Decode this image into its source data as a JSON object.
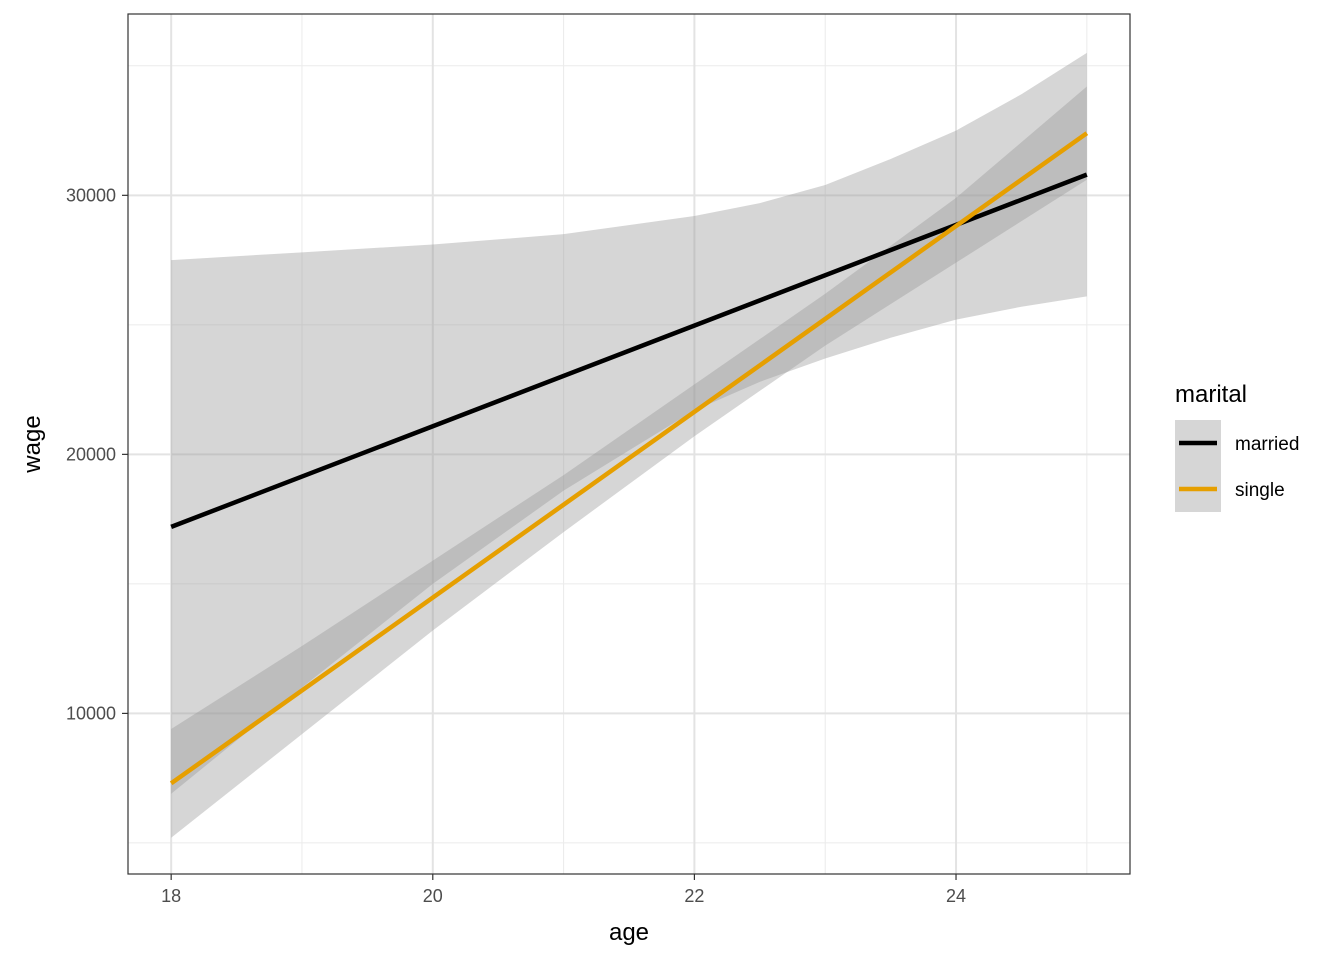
{
  "chart_data": {
    "type": "line",
    "xlabel": "age",
    "ylabel": "wage",
    "xlim": [
      17.67,
      25.33
    ],
    "ylim": [
      3800,
      37000
    ],
    "x_ticks": [
      18,
      20,
      22,
      24
    ],
    "x_tick_labels": [
      "18",
      "20",
      "22",
      "24"
    ],
    "x_minor": [
      19,
      21,
      23,
      25
    ],
    "y_ticks": [
      10000,
      20000,
      30000
    ],
    "y_tick_labels": [
      "10000",
      "20000",
      "30000"
    ],
    "y_minor": [
      5000,
      15000,
      25000,
      35000
    ],
    "grid": true,
    "legend": {
      "title": "marital",
      "position": "right",
      "entries": [
        "married",
        "single"
      ]
    },
    "series": [
      {
        "name": "married",
        "color": "#000000",
        "x": [
          18,
          25
        ],
        "y": [
          17200,
          30800
        ],
        "band_x": [
          18,
          19,
          20,
          21,
          22,
          22.5,
          23,
          23.5,
          24,
          24.5,
          25
        ],
        "band_lower": [
          6900,
          11000,
          15000,
          18600,
          21700,
          22800,
          23700,
          24500,
          25200,
          25700,
          26100
        ],
        "band_upper": [
          27500,
          27800,
          28100,
          28500,
          29200,
          29700,
          30400,
          31400,
          32500,
          33900,
          35500
        ]
      },
      {
        "name": "single",
        "color": "#E69F00",
        "x": [
          18,
          25
        ],
        "y": [
          7300,
          32400
        ],
        "band_x": [
          18,
          19,
          20,
          21,
          22,
          23,
          24,
          25
        ],
        "band_lower": [
          5200,
          9200,
          13200,
          17000,
          20700,
          24200,
          27400,
          30600
        ],
        "band_upper": [
          9400,
          12600,
          15900,
          19200,
          22700,
          26200,
          29900,
          34200
        ]
      }
    ]
  }
}
